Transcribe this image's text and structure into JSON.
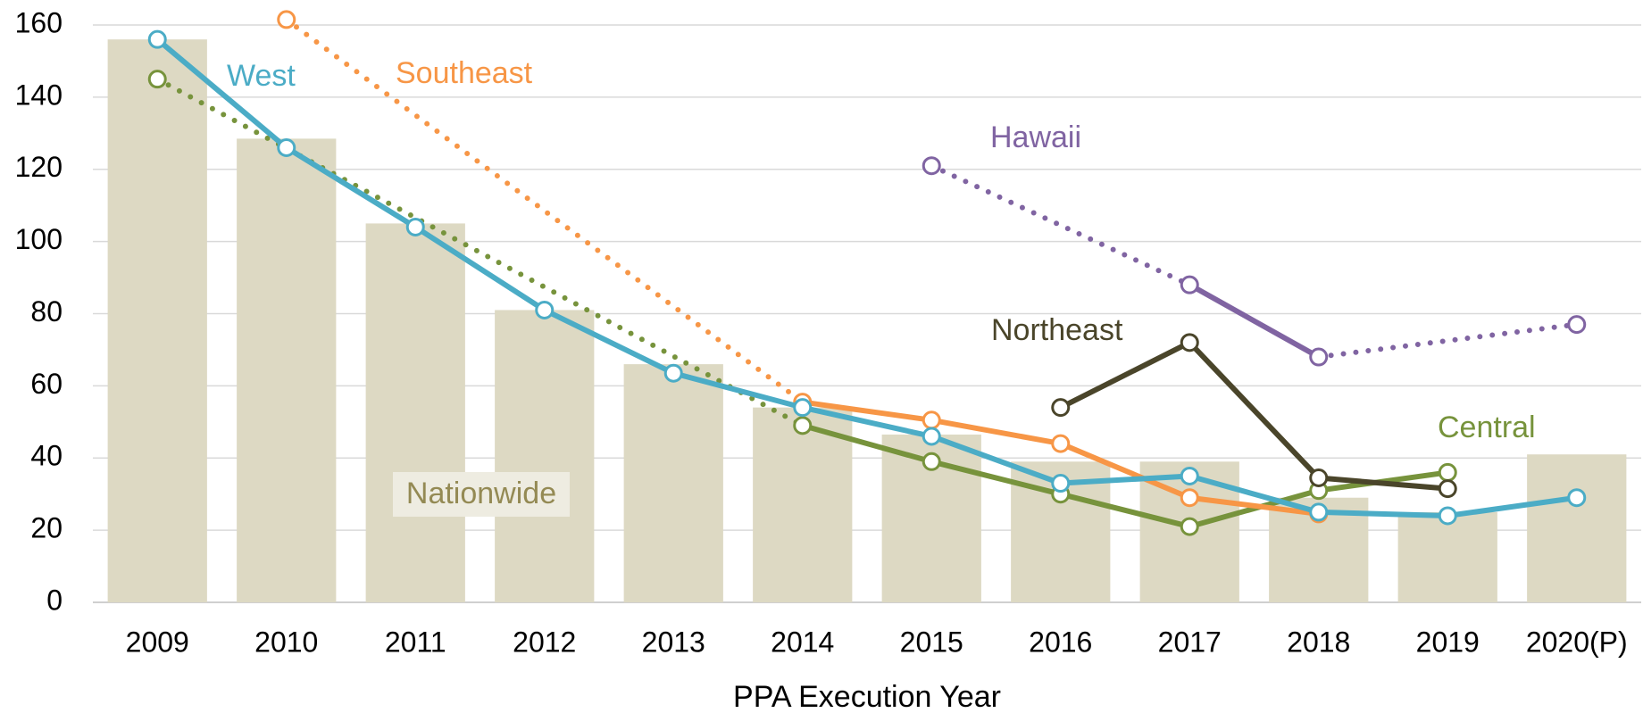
{
  "chart_data": {
    "type": "bar-line",
    "x_label": "PPA Execution Year",
    "categories": [
      "2009",
      "2010",
      "2011",
      "2012",
      "2013",
      "2014",
      "2015",
      "2016",
      "2017",
      "2018",
      "2019",
      "2020(P)"
    ],
    "bars": {
      "name": "Nationwide",
      "color": "#ddd9c3",
      "label_color": "#948a54",
      "values": [
        156,
        128.5,
        105,
        81,
        66,
        54,
        46.5,
        39,
        39,
        29,
        25,
        41
      ]
    },
    "series": [
      {
        "name": "Central",
        "color": "#77933c",
        "values": [
          145,
          null,
          null,
          null,
          null,
          49,
          39,
          30,
          21,
          31,
          36,
          null
        ]
      },
      {
        "name": "Southeast",
        "color": "#f79646",
        "values": [
          null,
          161.5,
          null,
          null,
          null,
          55.5,
          50.5,
          44,
          29,
          24.5,
          null,
          null
        ]
      },
      {
        "name": "Hawaii",
        "color": "#8064a2",
        "values": [
          null,
          null,
          null,
          null,
          null,
          null,
          121,
          null,
          88,
          68,
          null,
          77
        ]
      },
      {
        "name": "Northeast",
        "color": "#4a452a",
        "values": [
          null,
          null,
          null,
          null,
          null,
          null,
          null,
          54,
          72,
          34.5,
          31.5,
          null
        ]
      },
      {
        "name": "West",
        "color": "#4bacc6",
        "values": [
          156,
          126,
          104,
          81,
          63.5,
          54,
          46,
          33,
          35,
          25,
          24,
          29
        ]
      }
    ],
    "ylim": [
      0,
      160
    ],
    "yticks": [
      0,
      20,
      40,
      60,
      80,
      100,
      120,
      140,
      160
    ],
    "grid": true
  }
}
